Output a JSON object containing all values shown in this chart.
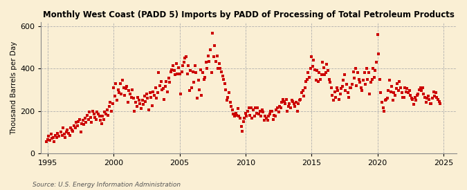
{
  "title": "Monthly West Coast (PADD 5) Imports by PADD of Processing of Total Petroleum Products",
  "ylabel": "Thousand Barrels per Day",
  "source": "Source: U.S. Energy Information Administration",
  "background_color": "#faefd4",
  "marker_color": "#cc0000",
  "marker_size": 6,
  "xlim": [
    1994.5,
    2026.0
  ],
  "ylim": [
    0,
    620
  ],
  "yticks": [
    0,
    200,
    400,
    600
  ],
  "xticks": [
    1995,
    2000,
    2005,
    2010,
    2015,
    2020,
    2025
  ],
  "data": {
    "dates": [
      1994.917,
      1995.0,
      1995.083,
      1995.167,
      1995.25,
      1995.333,
      1995.417,
      1995.5,
      1995.583,
      1995.667,
      1995.75,
      1995.833,
      1996.0,
      1996.083,
      1996.167,
      1996.25,
      1996.333,
      1996.417,
      1996.5,
      1996.583,
      1996.667,
      1996.75,
      1996.833,
      1996.917,
      1997.0,
      1997.083,
      1997.167,
      1997.25,
      1997.333,
      1997.417,
      1997.5,
      1997.583,
      1997.667,
      1997.75,
      1997.833,
      1997.917,
      1998.0,
      1998.083,
      1998.167,
      1998.25,
      1998.333,
      1998.417,
      1998.5,
      1998.583,
      1998.667,
      1998.75,
      1998.833,
      1998.917,
      1999.0,
      1999.083,
      1999.167,
      1999.25,
      1999.333,
      1999.417,
      1999.5,
      1999.583,
      1999.667,
      1999.75,
      1999.833,
      1999.917,
      2000.0,
      2000.083,
      2000.167,
      2000.25,
      2000.333,
      2000.417,
      2000.5,
      2000.583,
      2000.667,
      2000.75,
      2000.833,
      2000.917,
      2001.0,
      2001.083,
      2001.167,
      2001.25,
      2001.333,
      2001.417,
      2001.5,
      2001.583,
      2001.667,
      2001.75,
      2001.833,
      2001.917,
      2002.0,
      2002.083,
      2002.167,
      2002.25,
      2002.333,
      2002.417,
      2002.5,
      2002.583,
      2002.667,
      2002.75,
      2002.833,
      2002.917,
      2003.0,
      2003.083,
      2003.167,
      2003.25,
      2003.333,
      2003.417,
      2003.5,
      2003.583,
      2003.667,
      2003.75,
      2003.833,
      2003.917,
      2004.0,
      2004.083,
      2004.167,
      2004.25,
      2004.333,
      2004.417,
      2004.5,
      2004.583,
      2004.667,
      2004.75,
      2004.833,
      2004.917,
      2005.0,
      2005.083,
      2005.167,
      2005.25,
      2005.333,
      2005.417,
      2005.5,
      2005.583,
      2005.667,
      2005.75,
      2005.833,
      2005.917,
      2006.0,
      2006.083,
      2006.167,
      2006.25,
      2006.333,
      2006.417,
      2006.5,
      2006.583,
      2006.667,
      2006.75,
      2006.833,
      2006.917,
      2007.0,
      2007.083,
      2007.167,
      2007.25,
      2007.333,
      2007.417,
      2007.5,
      2007.583,
      2007.667,
      2007.75,
      2007.833,
      2007.917,
      2008.0,
      2008.083,
      2008.167,
      2008.25,
      2008.333,
      2008.417,
      2008.5,
      2008.583,
      2008.667,
      2008.75,
      2008.833,
      2008.917,
      2009.0,
      2009.083,
      2009.167,
      2009.25,
      2009.333,
      2009.417,
      2009.5,
      2009.583,
      2009.667,
      2009.75,
      2009.833,
      2009.917,
      2010.0,
      2010.083,
      2010.167,
      2010.25,
      2010.333,
      2010.417,
      2010.5,
      2010.583,
      2010.667,
      2010.75,
      2010.833,
      2010.917,
      2011.0,
      2011.083,
      2011.167,
      2011.25,
      2011.333,
      2011.417,
      2011.5,
      2011.583,
      2011.667,
      2011.75,
      2011.833,
      2011.917,
      2012.0,
      2012.083,
      2012.167,
      2012.25,
      2012.333,
      2012.417,
      2012.5,
      2012.583,
      2012.667,
      2012.75,
      2012.833,
      2012.917,
      2013.0,
      2013.083,
      2013.167,
      2013.25,
      2013.333,
      2013.417,
      2013.5,
      2013.583,
      2013.667,
      2013.75,
      2013.833,
      2013.917,
      2014.0,
      2014.083,
      2014.167,
      2014.25,
      2014.333,
      2014.417,
      2014.5,
      2014.583,
      2014.667,
      2014.75,
      2014.833,
      2014.917,
      2015.0,
      2015.083,
      2015.167,
      2015.25,
      2015.333,
      2015.417,
      2015.5,
      2015.583,
      2015.667,
      2015.75,
      2015.833,
      2015.917,
      2016.0,
      2016.083,
      2016.167,
      2016.25,
      2016.333,
      2016.417,
      2016.5,
      2016.583,
      2016.667,
      2016.75,
      2016.833,
      2016.917,
      2017.0,
      2017.083,
      2017.167,
      2017.25,
      2017.333,
      2017.417,
      2017.5,
      2017.583,
      2017.667,
      2017.75,
      2017.833,
      2017.917,
      2018.0,
      2018.083,
      2018.167,
      2018.25,
      2018.333,
      2018.417,
      2018.5,
      2018.583,
      2018.667,
      2018.75,
      2018.833,
      2018.917,
      2019.0,
      2019.083,
      2019.167,
      2019.25,
      2019.333,
      2019.417,
      2019.5,
      2019.583,
      2019.667,
      2019.75,
      2019.833,
      2019.917,
      2020.0,
      2020.083,
      2020.167,
      2020.25,
      2020.333,
      2020.417,
      2020.5,
      2020.583,
      2020.667,
      2020.75,
      2020.833,
      2020.917,
      2021.0,
      2021.083,
      2021.167,
      2021.25,
      2021.333,
      2021.417,
      2021.5,
      2021.583,
      2021.667,
      2021.75,
      2021.833,
      2021.917,
      2022.0,
      2022.083,
      2022.167,
      2022.25,
      2022.333,
      2022.417,
      2022.5,
      2022.583,
      2022.667,
      2022.75,
      2022.833,
      2022.917,
      2023.0,
      2023.083,
      2023.167,
      2023.25,
      2023.333,
      2023.417,
      2023.5,
      2023.583,
      2023.667,
      2023.75,
      2023.833,
      2023.917,
      2024.0,
      2024.083,
      2024.167,
      2024.25,
      2024.333,
      2024.417,
      2024.5,
      2024.583,
      2024.667,
      2024.75
    ],
    "values": [
      55,
      65,
      80,
      60,
      90,
      70,
      75,
      55,
      85,
      75,
      95,
      80,
      100,
      85,
      120,
      90,
      75,
      100,
      110,
      95,
      85,
      120,
      110,
      105,
      130,
      120,
      145,
      130,
      150,
      160,
      100,
      140,
      155,
      135,
      165,
      145,
      180,
      160,
      195,
      170,
      145,
      200,
      185,
      170,
      160,
      195,
      185,
      175,
      155,
      140,
      175,
      160,
      195,
      185,
      205,
      180,
      220,
      240,
      200,
      235,
      310,
      270,
      330,
      250,
      300,
      285,
      330,
      280,
      345,
      310,
      275,
      305,
      315,
      240,
      295,
      280,
      265,
      300,
      260,
      200,
      240,
      220,
      265,
      250,
      235,
      210,
      250,
      230,
      270,
      245,
      280,
      260,
      205,
      285,
      265,
      225,
      290,
      275,
      310,
      260,
      285,
      380,
      320,
      340,
      300,
      305,
      255,
      315,
      340,
      290,
      355,
      335,
      385,
      395,
      415,
      390,
      370,
      425,
      375,
      405,
      375,
      280,
      385,
      415,
      430,
      450,
      455,
      375,
      415,
      295,
      390,
      310,
      385,
      335,
      415,
      380,
      260,
      345,
      300,
      395,
      275,
      380,
      350,
      360,
      430,
      400,
      460,
      435,
      490,
      380,
      568,
      455,
      510,
      435,
      460,
      400,
      425,
      400,
      385,
      365,
      350,
      330,
      300,
      250,
      265,
      285,
      240,
      220,
      205,
      185,
      175,
      190,
      180,
      210,
      175,
      165,
      125,
      105,
      150,
      165,
      190,
      175,
      200,
      215,
      180,
      215,
      165,
      205,
      175,
      215,
      190,
      215,
      185,
      200,
      175,
      205,
      195,
      155,
      175,
      165,
      155,
      175,
      185,
      200,
      200,
      160,
      180,
      175,
      205,
      215,
      195,
      220,
      215,
      240,
      255,
      245,
      235,
      255,
      200,
      220,
      235,
      215,
      250,
      245,
      235,
      220,
      240,
      200,
      235,
      250,
      255,
      285,
      295,
      270,
      310,
      340,
      350,
      380,
      360,
      400,
      455,
      410,
      440,
      395,
      345,
      390,
      340,
      380,
      350,
      370,
      430,
      405,
      370,
      380,
      420,
      390,
      350,
      335,
      310,
      275,
      250,
      290,
      265,
      310,
      295,
      255,
      280,
      305,
      315,
      345,
      370,
      295,
      325,
      285,
      265,
      310,
      310,
      325,
      385,
      355,
      400,
      320,
      380,
      350,
      335,
      310,
      295,
      345,
      380,
      325,
      400,
      350,
      380,
      280,
      335,
      350,
      400,
      360,
      390,
      430,
      560,
      470,
      350,
      285,
      240,
      215,
      200,
      250,
      255,
      260,
      295,
      345,
      290,
      315,
      250,
      285,
      275,
      305,
      330,
      295,
      340,
      310,
      285,
      265,
      265,
      310,
      290,
      305,
      285,
      295,
      275,
      260,
      255,
      230,
      265,
      250,
      275,
      280,
      300,
      310,
      295,
      310,
      280,
      265,
      240,
      260,
      270,
      255,
      235,
      235,
      260,
      290,
      270,
      285,
      265,
      255,
      245,
      235
    ]
  }
}
